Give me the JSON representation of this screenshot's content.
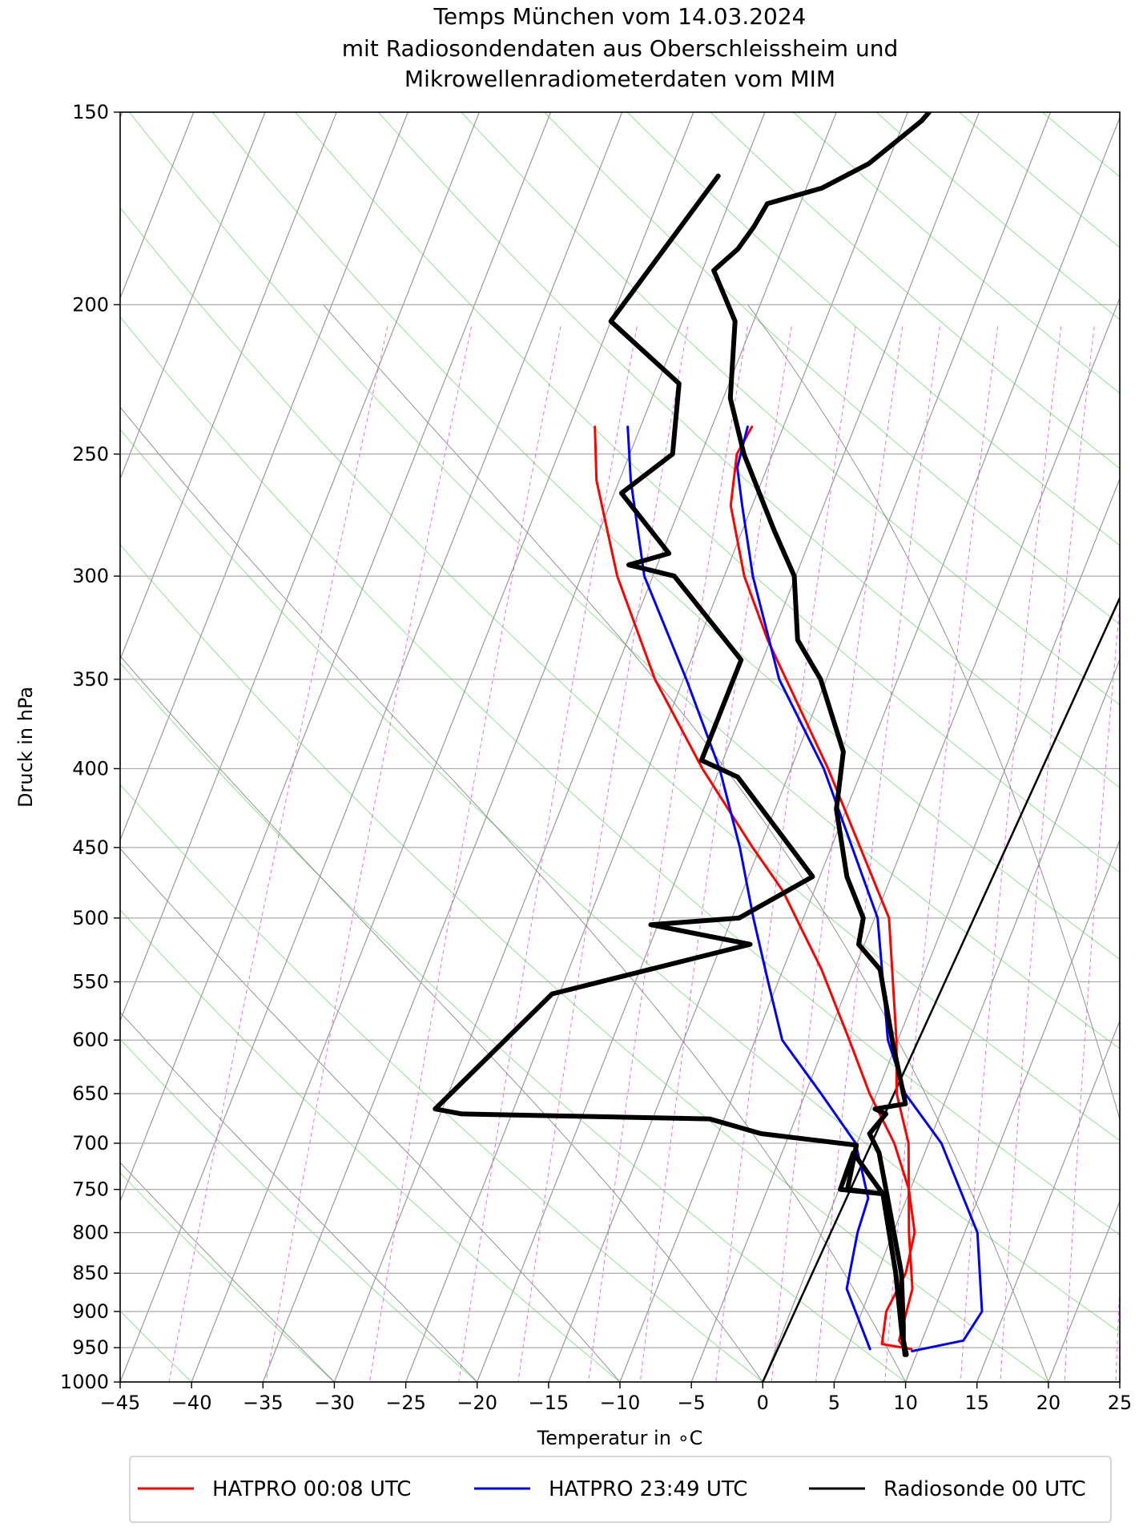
{
  "chart_data": {
    "type": "line",
    "title_lines": [
      "Temps München vom 14.03.2024",
      "mit Radiosondendaten aus Oberschleissheim und",
      "Mikrowellenradiometerdaten vom MIM"
    ],
    "xlabel": "Temperatur in ∘C",
    "ylabel": "Druck in hPa",
    "xlim": [
      -45,
      25
    ],
    "ylim": [
      1000,
      150
    ],
    "y_scale": "log",
    "grid": true,
    "legend_position": "bottom",
    "x_ticks": [
      "−45",
      "−40",
      "−35",
      "−30",
      "−25",
      "−20",
      "−15",
      "−10",
      "−5",
      "0",
      "5",
      "10",
      "15",
      "20",
      "25"
    ],
    "y_ticks": [
      "150",
      "200",
      "250",
      "300",
      "350",
      "400",
      "450",
      "500",
      "550",
      "600",
      "650",
      "700",
      "750",
      "800",
      "850",
      "900",
      "950",
      "1000"
    ],
    "series": [
      {
        "name": "HATPRO 00:08 UTC",
        "color": "#ff0000",
        "lines": [
          {
            "x": [
              -38.2,
              -36.6,
              -32.5,
              -27.0,
              -21.2,
              -15.5,
              -12.2,
              -7.3,
              -3.4,
              -0.5,
              2.6,
              4.9,
              6.5,
              7.0,
              6.7,
              7.3,
              9.5
            ],
            "y": [
              240,
              260,
              300,
              350,
              400,
              450,
              480,
              540,
              600,
              650,
              700,
              750,
              800,
              850,
              900,
              945,
              952
            ]
          },
          {
            "x": [
              -27.2,
              -27.5,
              -26.5,
              -23.6,
              -20.2,
              -12.4,
              -4.0,
              -0.1,
              1.4,
              3.6,
              6.1,
              7.9,
              8.4,
              9.2
            ],
            "y": [
              240,
              250,
              270,
              300,
              330,
              400,
              500,
              600,
              650,
              700,
              800,
              870,
              940,
              955
            ]
          }
        ]
      },
      {
        "name": "HATPRO 23:49 UTC",
        "color": "#0000ff",
        "lines": [
          {
            "x": [
              -35.9,
              -34.2,
              -30.6,
              -24.8,
              -20.0,
              -16.4,
              -13.5,
              -10.7,
              -8.1,
              -3.9,
              -0.1,
              2.3,
              2.5,
              3.3,
              6.6
            ],
            "y": [
              240,
              260,
              300,
              350,
              400,
              450,
              500,
              550,
              600,
              650,
              700,
              760,
              800,
              870,
              952
            ]
          },
          {
            "x": [
              -27.5,
              -27.1,
              -25.7,
              -23.0,
              -18.3,
              -12.7,
              -4.8,
              -0.7,
              2.0,
              5.9,
              10.9,
              13.4,
              12.9,
              9.6
            ],
            "y": [
              240,
              255,
              270,
              300,
              350,
              400,
              500,
              600,
              650,
              700,
              800,
              900,
              940,
              955
            ]
          }
        ]
      },
      {
        "name": "Radiosonde 00 UTC",
        "color": "#000000",
        "lines": [
          {
            "x": [
              -36.5,
              -40.0,
              -33.5,
              -32.0,
              -34.5,
              -29.5,
              -32.0,
              -28.5,
              -21.5,
              -21.5,
              -21.5,
              -18.5,
              -10.5,
              -14.5,
              -20.5,
              -13.0,
              -25.5,
              -27.5,
              -30.5,
              -28.5,
              -11.0,
              -7.0,
              0.0,
              0.6,
              3.2,
              0.1,
              0.0,
              3.2,
              6.3,
              8.4,
              9.3
            ],
            "y": [
              165,
              205,
              225,
              250,
              265,
              290,
              295,
              300,
              340,
              370,
              395,
              405,
              470,
              500,
              505,
              520,
              560,
              600,
              665,
              670,
              675,
              690,
              702,
              750,
              755,
              750,
              710,
              755,
              850,
              930,
              960
            ]
          },
          {
            "x": [
              -23.5,
              -23.8,
              -26.3,
              -28.9,
              -32.3,
              -32.6,
              -33.1,
              -34.2,
              -31.3,
              -29.5,
              -27.0,
              -22.8,
              -20.1,
              -18.1,
              -15.4,
              -11.8,
              -10.7,
              -8.1,
              -5.8,
              -5.4,
              -3.2,
              -0.4,
              2.3,
              0.3,
              1.2,
              0.6,
              1.8,
              3.3,
              6.7,
              8.3,
              8.7,
              9.2
            ],
            "y": [
              150,
              152,
              162,
              168,
              172,
              178,
              184,
              190,
              205,
              230,
              250,
              280,
              300,
              330,
              350,
              390,
              425,
              470,
              500,
              520,
              540,
              600,
              660,
              665,
              670,
              690,
              710,
              750,
              850,
              920,
              940,
              960
            ]
          }
        ]
      }
    ],
    "background_isolines": [
      "isotherms",
      "dry adiabats",
      "moist adiabats",
      "mixing ratio lines"
    ],
    "reference_line": {
      "x": [
        0,
        25
      ],
      "y": [
        1000,
        310
      ],
      "color": "#000000"
    }
  }
}
